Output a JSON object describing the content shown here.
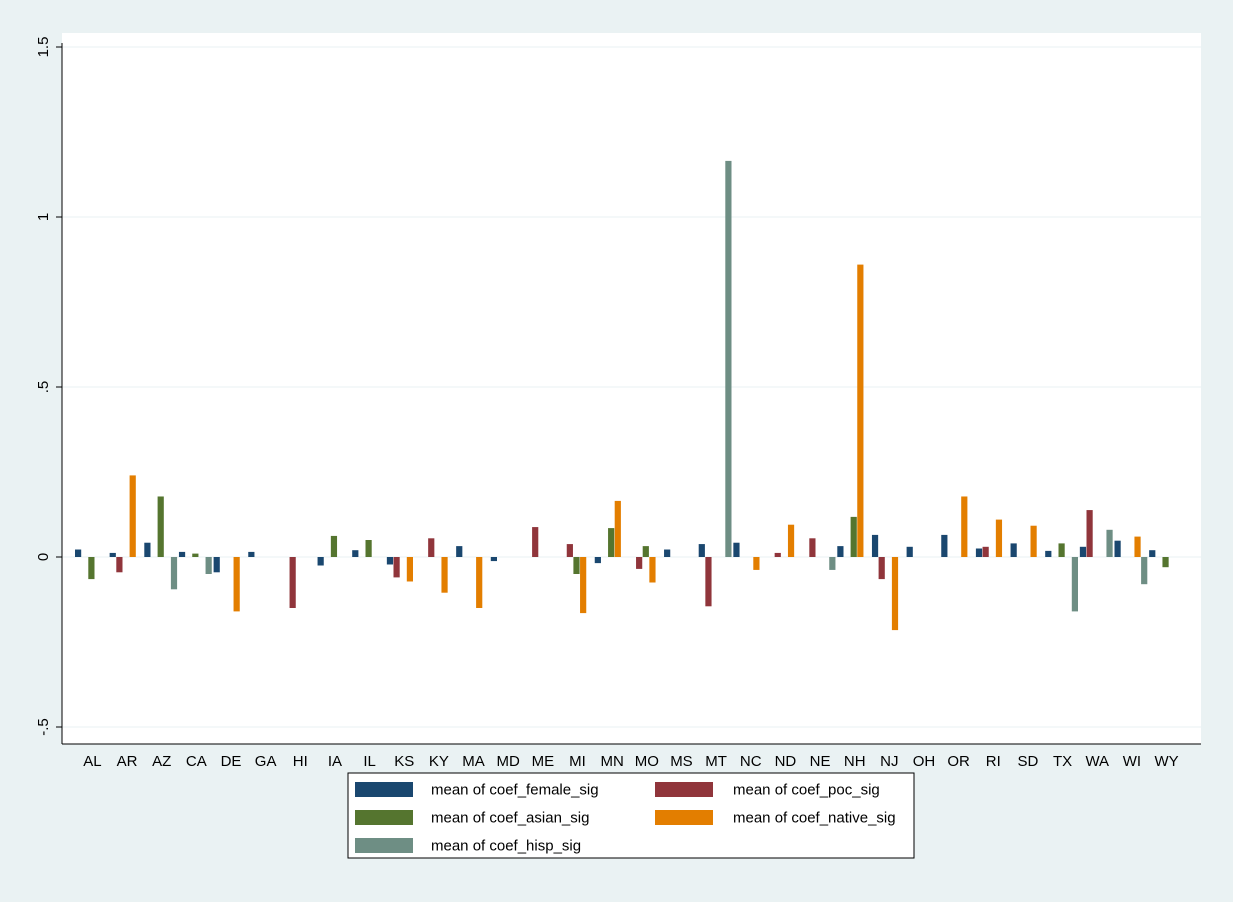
{
  "chart_data": {
    "type": "bar",
    "title": "",
    "xlabel": "",
    "ylabel": "",
    "ylim": [
      -0.5,
      1.5
    ],
    "y_ticks": [
      {
        "value": -0.5,
        "label": "-.5"
      },
      {
        "value": 0,
        "label": "0"
      },
      {
        "value": 0.5,
        "label": ".5"
      },
      {
        "value": 1,
        "label": "1"
      },
      {
        "value": 1.5,
        "label": "1.5"
      }
    ],
    "grid": true,
    "legend_position": "bottom",
    "categories": [
      "AL",
      "AR",
      "AZ",
      "CA",
      "DE",
      "GA",
      "HI",
      "IA",
      "IL",
      "KS",
      "KY",
      "MA",
      "MD",
      "ME",
      "MI",
      "MN",
      "MO",
      "MS",
      "MT",
      "NC",
      "ND",
      "NE",
      "NH",
      "NJ",
      "OH",
      "OR",
      "RI",
      "SD",
      "TX",
      "WA",
      "WI",
      "WY"
    ],
    "series": [
      {
        "name": "mean of coef_female_sig",
        "color": "#1a476f",
        "values": [
          0.022,
          0.012,
          0.042,
          0.015,
          -0.045,
          0.015,
          null,
          -0.025,
          0.02,
          -0.022,
          null,
          0.032,
          -0.012,
          null,
          null,
          -0.018,
          null,
          0.022,
          0.038,
          0.042,
          null,
          null,
          0.032,
          0.065,
          0.03,
          0.065,
          0.025,
          0.04,
          0.018,
          0.03,
          0.048,
          0.02
        ]
      },
      {
        "name": "mean of coef_poc_sig",
        "color": "#90353b",
        "values": [
          null,
          -0.045,
          null,
          null,
          null,
          null,
          -0.15,
          null,
          null,
          -0.06,
          0.055,
          null,
          null,
          0.088,
          0.038,
          null,
          -0.035,
          null,
          -0.145,
          null,
          0.012,
          0.055,
          null,
          -0.065,
          null,
          null,
          0.03,
          null,
          null,
          0.138,
          null,
          null
        ]
      },
      {
        "name": "mean of coef_asian_sig",
        "color": "#55752f",
        "values": [
          -0.065,
          null,
          0.178,
          0.01,
          null,
          null,
          null,
          0.062,
          0.05,
          null,
          null,
          null,
          null,
          null,
          -0.05,
          0.085,
          0.032,
          null,
          null,
          null,
          null,
          null,
          0.118,
          null,
          null,
          null,
          null,
          null,
          0.04,
          null,
          null,
          -0.03
        ]
      },
      {
        "name": "mean of coef_native_sig",
        "color": "#e37e00",
        "values": [
          null,
          0.24,
          null,
          null,
          -0.16,
          null,
          null,
          null,
          null,
          -0.072,
          -0.105,
          -0.15,
          null,
          null,
          -0.165,
          0.165,
          -0.075,
          null,
          null,
          -0.038,
          0.095,
          null,
          0.86,
          -0.215,
          null,
          0.178,
          0.11,
          0.092,
          null,
          null,
          0.06,
          null
        ]
      },
      {
        "name": "mean of coef_hisp_sig",
        "color": "#6e8e84",
        "values": [
          null,
          null,
          -0.095,
          -0.05,
          null,
          null,
          null,
          null,
          null,
          null,
          null,
          null,
          null,
          null,
          null,
          null,
          null,
          null,
          1.165,
          null,
          null,
          -0.038,
          null,
          null,
          null,
          null,
          null,
          null,
          -0.16,
          0.08,
          -0.08,
          null
        ]
      }
    ]
  }
}
